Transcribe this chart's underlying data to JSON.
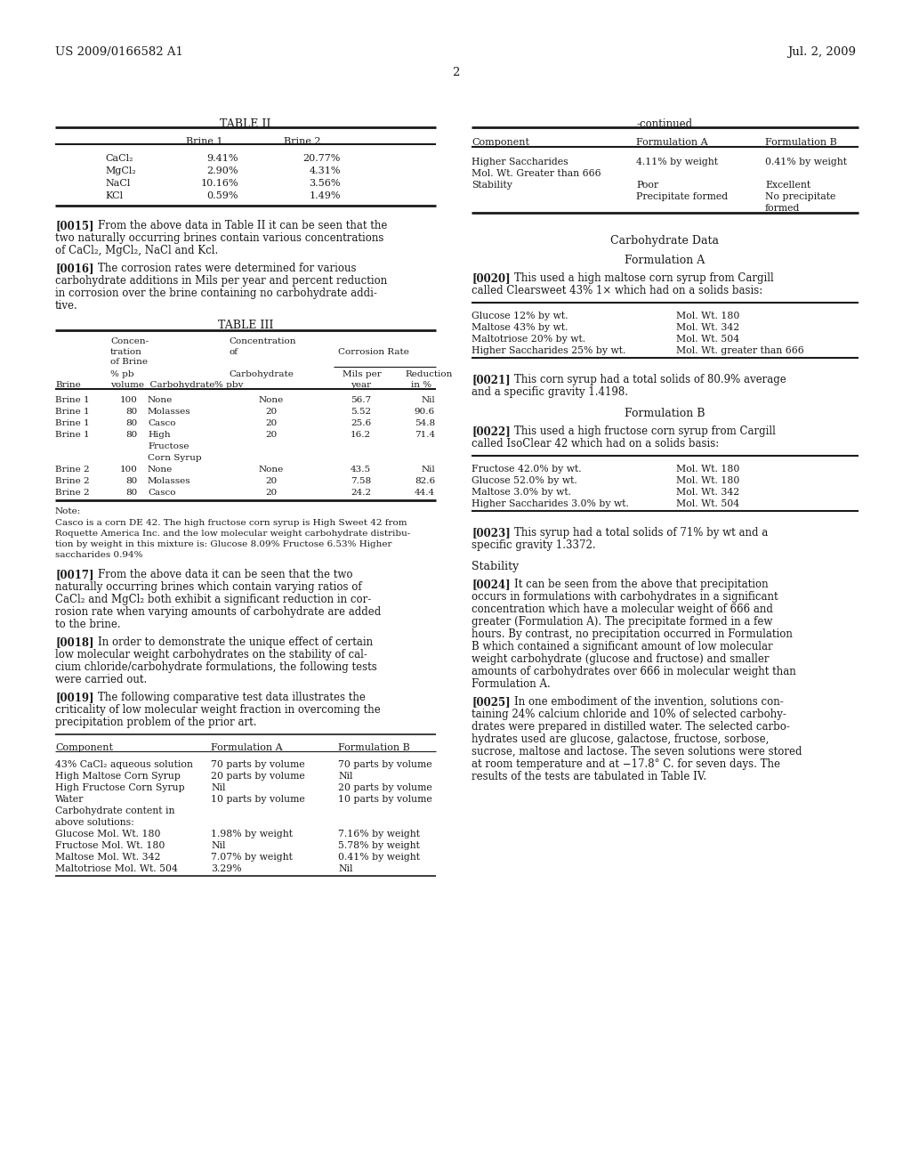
{
  "bg": "#ffffff",
  "fg": "#1a1a1a",
  "header_left": "US 2009/0166582 A1",
  "header_right": "Jul. 2, 2009",
  "page_num": "2"
}
